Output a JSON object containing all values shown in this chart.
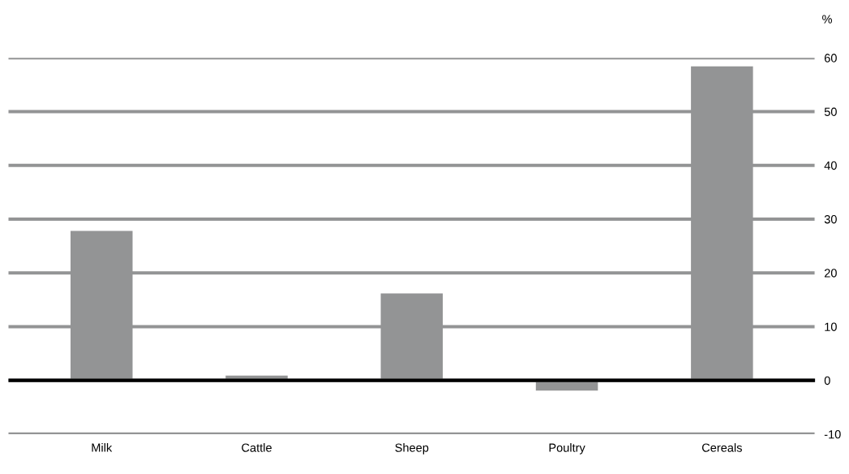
{
  "chart_data": {
    "type": "bar",
    "ylabel": "%",
    "categories": [
      "Milk",
      "Cattle",
      "Sheep",
      "Poultry",
      "Cereals"
    ],
    "values": [
      27.8,
      0.9,
      16.2,
      -1.9,
      58.4
    ],
    "color": "#939495",
    "ylim": [
      -10,
      60
    ],
    "yticks": [
      -10,
      0,
      10,
      20,
      30,
      40,
      50,
      60
    ],
    "grid": "y",
    "ref_lines": [
      {
        "axis": "y",
        "value": 0,
        "color": "#000000"
      }
    ]
  }
}
